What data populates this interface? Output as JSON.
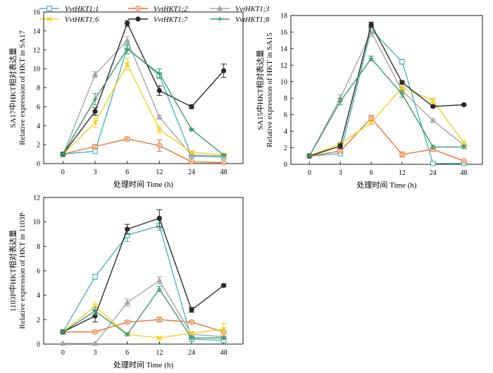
{
  "figure": {
    "legend": [
      {
        "label": "VvtHKT1;1",
        "color": "#4bb7b6",
        "marker": "square"
      },
      {
        "label": "VvtHKT1;2",
        "color": "#e8742f",
        "marker": "circle-dot"
      },
      {
        "label": "VvtHKT1;3",
        "color": "#a6a6a6",
        "marker": "triangle"
      },
      {
        "label": "VvtHKT1;6",
        "color": "#f2d024",
        "marker": "x"
      },
      {
        "label": "VvtHKT1;7",
        "color": "#2b2b2b",
        "marker": "circle"
      },
      {
        "label": "VvtHKT1;8",
        "color": "#3f9a6e",
        "marker": "plus"
      }
    ]
  },
  "chart_data": [
    {
      "type": "line",
      "x": [
        "0",
        "3",
        "6",
        "12",
        "24",
        "48"
      ],
      "xlabel": "处理时间 Time (h)",
      "ylabel_cn": "SA17中HKT相对表达量",
      "ylabel_en": "Relative expression of HKT in SA17",
      "ylim": [
        0,
        16
      ],
      "yticks": [
        0,
        2,
        4,
        6,
        8,
        10,
        12,
        14,
        16
      ],
      "series": [
        {
          "name": "VvtHKT1;1",
          "values": [
            1.0,
            1.3,
            12.2,
            9.3,
            0.8,
            0.7
          ],
          "err": [
            0.1,
            0.1,
            0.6,
            0.3,
            0.1,
            0.1
          ]
        },
        {
          "name": "VvtHKT1;2",
          "values": [
            1.0,
            1.8,
            2.6,
            1.9,
            0.2,
            0.1
          ],
          "err": [
            0.1,
            0.2,
            0.2,
            0.6,
            0.05,
            0.05
          ]
        },
        {
          "name": "VvtHKT1;3",
          "values": [
            0.9,
            9.4,
            13.0,
            4.9,
            0.9,
            0.8
          ],
          "err": [
            0.1,
            0.3,
            0.4,
            0.2,
            0.1,
            0.1
          ]
        },
        {
          "name": "VvtHKT1;6",
          "values": [
            1.0,
            4.3,
            10.5,
            3.6,
            1.2,
            0.9
          ],
          "err": [
            0.1,
            0.5,
            0.6,
            0.4,
            0.1,
            0.1
          ]
        },
        {
          "name": "VvtHKT1;7",
          "values": [
            1.0,
            5.5,
            14.8,
            7.7,
            6.0,
            9.8
          ],
          "err": [
            0.1,
            0.4,
            0.3,
            0.5,
            0.2,
            0.7
          ]
        },
        {
          "name": "VvtHKT1;8",
          "values": [
            1.0,
            6.8,
            12.1,
            9.5,
            3.6,
            0.9
          ],
          "err": [
            0.1,
            0.6,
            0.5,
            0.5,
            0.1,
            0.1
          ]
        }
      ]
    },
    {
      "type": "line",
      "x": [
        "0",
        "3",
        "6",
        "12",
        "24",
        "48"
      ],
      "xlabel": "处理时间 Time (h)",
      "ylabel_cn": "SA15中HKT相对表达量",
      "ylabel_en": "Relative expression of HKT in SA15",
      "ylim": [
        0,
        18
      ],
      "yticks": [
        0,
        2,
        4,
        6,
        8,
        10,
        12,
        14,
        16,
        18
      ],
      "series": [
        {
          "name": "VvtHKT1;1",
          "values": [
            1.0,
            1.3,
            16.3,
            12.4,
            0.1,
            0.1
          ],
          "err": [
            0.1,
            0.1,
            0.4,
            0.3,
            0.05,
            0.05
          ]
        },
        {
          "name": "VvtHKT1;2",
          "values": [
            1.0,
            1.6,
            5.6,
            1.2,
            1.8,
            0.4
          ],
          "err": [
            0.1,
            0.2,
            0.3,
            0.3,
            0.2,
            0.1
          ]
        },
        {
          "name": "VvtHKT1;3",
          "values": [
            1.0,
            8.0,
            16.0,
            8.9,
            5.3,
            2.3
          ],
          "err": [
            0.1,
            0.4,
            0.5,
            0.4,
            0.2,
            0.2
          ]
        },
        {
          "name": "VvtHKT1;6",
          "values": [
            1.0,
            2.5,
            5.0,
            9.3,
            7.7,
            2.6
          ],
          "err": [
            0.1,
            0.2,
            0.2,
            0.5,
            0.3,
            0.2
          ]
        },
        {
          "name": "VvtHKT1;7",
          "values": [
            1.0,
            2.2,
            16.9,
            9.9,
            7.0,
            7.2
          ],
          "err": [
            0.1,
            0.3,
            0.3,
            0.2,
            0.1,
            0.1
          ]
        },
        {
          "name": "VvtHKT1;8",
          "values": [
            1.0,
            7.6,
            12.8,
            8.5,
            2.1,
            2.1
          ],
          "err": [
            0.1,
            0.4,
            0.3,
            0.4,
            0.2,
            0.2
          ]
        }
      ]
    },
    {
      "type": "line",
      "x": [
        "0",
        "3",
        "6",
        "12",
        "24",
        "48"
      ],
      "xlabel": "处理时间 Time (h)",
      "ylabel_cn": "1103P中HKT相对表达量",
      "ylabel_en": "Relative expression of HKT in 1103P",
      "ylim": [
        0,
        12
      ],
      "yticks": [
        0,
        2,
        4,
        6,
        8,
        10,
        12
      ],
      "series": [
        {
          "name": "VvtHKT1;1",
          "values": [
            1.0,
            5.5,
            8.9,
            9.7,
            0.4,
            0.3
          ],
          "err": [
            0.1,
            0.2,
            0.5,
            0.4,
            0.05,
            0.05
          ]
        },
        {
          "name": "VvtHKT1;2",
          "values": [
            1.0,
            1.0,
            1.8,
            2.0,
            1.8,
            1.0
          ],
          "err": [
            0.1,
            0.1,
            0.1,
            0.2,
            0.1,
            0.1
          ]
        },
        {
          "name": "VvtHKT1;3",
          "values": [
            0.05,
            0.05,
            3.4,
            5.2,
            0.8,
            0.6
          ],
          "err": [
            0.02,
            0.02,
            0.3,
            0.3,
            0.1,
            0.1
          ]
        },
        {
          "name": "VvtHKT1;6",
          "values": [
            1.0,
            3.1,
            0.8,
            0.5,
            0.9,
            1.2
          ],
          "err": [
            0.1,
            0.3,
            0.1,
            0.1,
            0.1,
            0.5
          ]
        },
        {
          "name": "VvtHKT1;7",
          "values": [
            1.0,
            2.3,
            9.4,
            10.3,
            2.8,
            4.8
          ],
          "err": [
            0.1,
            0.5,
            0.4,
            0.7,
            0.2,
            0.1
          ]
        },
        {
          "name": "VvtHKT1;8",
          "values": [
            1.0,
            2.7,
            0.8,
            4.5,
            0.5,
            0.5
          ],
          "err": [
            0.1,
            0.3,
            0.1,
            0.2,
            0.1,
            0.1
          ]
        }
      ]
    }
  ]
}
